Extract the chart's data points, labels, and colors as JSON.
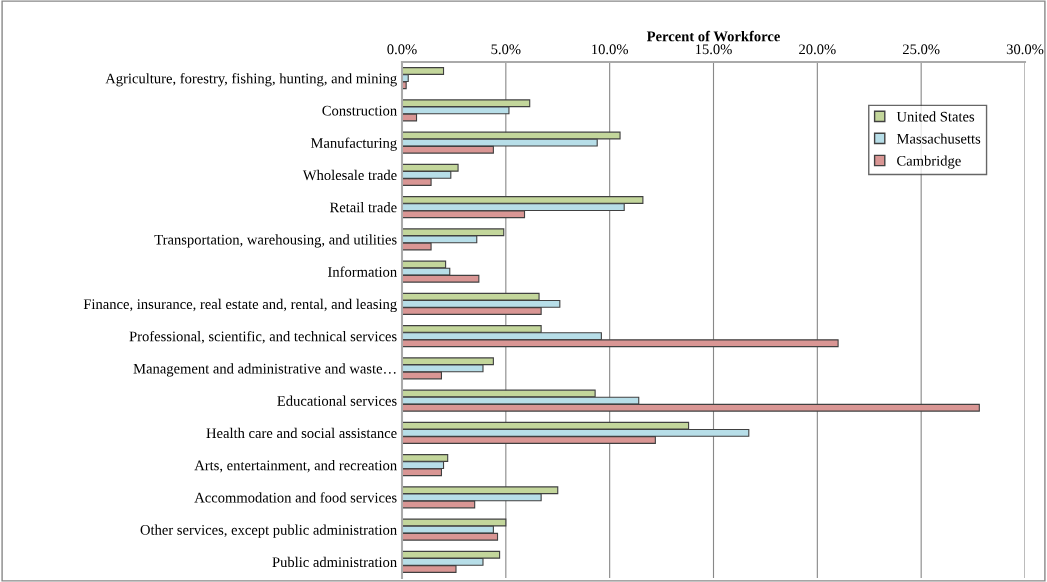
{
  "chart_data": {
    "type": "bar",
    "orientation": "horizontal",
    "xlabel": "Percent of Workforce",
    "categories": [
      "Agriculture, forestry, fishing, hunting, and mining",
      "Construction",
      "Manufacturing",
      "Wholesale trade",
      "Retail trade",
      "Transportation, warehousing, and utilities",
      "Information",
      "Finance, insurance, real estate and, rental, and leasing",
      "Professional, scientific, and technical services",
      "Management and administrative and waste…",
      "Educational services",
      "Health care and social assistance",
      "Arts, entertainment, and recreation",
      "Accommodation and food services",
      "Other services, except public administration",
      "Public administration"
    ],
    "series": [
      {
        "name": "United States",
        "color": "#c3d69b",
        "values": [
          2.0,
          6.15,
          10.5,
          2.7,
          11.6,
          4.9,
          2.1,
          6.6,
          6.7,
          4.4,
          9.3,
          13.8,
          2.2,
          7.5,
          5.0,
          4.7
        ]
      },
      {
        "name": "Massachusetts",
        "color": "#b7dee8",
        "values": [
          0.3,
          5.15,
          9.4,
          2.35,
          10.7,
          3.6,
          2.3,
          7.6,
          9.6,
          3.9,
          11.4,
          16.7,
          2.0,
          6.7,
          4.4,
          3.9
        ]
      },
      {
        "name": "Cambridge",
        "color": "#d99694",
        "values": [
          0.2,
          0.7,
          4.4,
          1.4,
          5.9,
          1.4,
          3.7,
          6.7,
          21.0,
          1.9,
          27.8,
          12.2,
          1.9,
          3.5,
          4.6,
          2.6
        ]
      }
    ],
    "xlim": [
      0,
      30
    ],
    "xticks": [
      {
        "value": 0,
        "label": "0.0%"
      },
      {
        "value": 5,
        "label": "5.0%"
      },
      {
        "value": 10,
        "label": "10.0%"
      },
      {
        "value": 15,
        "label": "15.0%"
      },
      {
        "value": 20,
        "label": "20.0%"
      },
      {
        "value": 25,
        "label": "25.0%"
      },
      {
        "value": 30,
        "label": "30.0%"
      }
    ],
    "grid": "x",
    "legend": "top right"
  }
}
